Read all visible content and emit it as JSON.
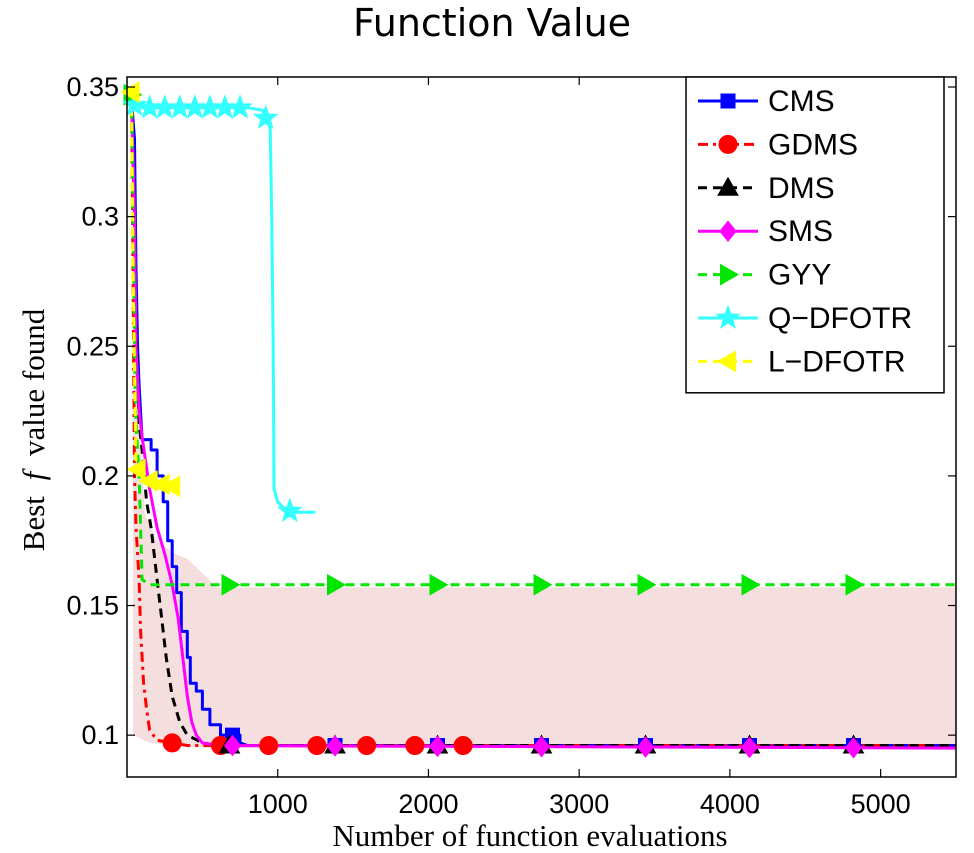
{
  "chart_data": {
    "type": "line",
    "title": "Function Value",
    "xlabel": "Number of function evaluations",
    "ylabel": {
      "prefix": "Best",
      "italic": "f",
      "suffix": "value found"
    },
    "xlim": [
      0,
      5500
    ],
    "ylim": [
      0.08,
      0.35
    ],
    "xticks": [
      1000,
      2000,
      3000,
      4000,
      5000
    ],
    "xtick_labels": [
      "1000",
      "2000",
      "3000",
      "4000",
      "5000"
    ],
    "yticks": [
      0.1,
      0.15,
      0.2,
      0.25,
      0.3,
      0.35
    ],
    "ytick_labels": [
      "0.1",
      "0.15",
      "0.2",
      "0.25",
      "0.3",
      "0.35"
    ],
    "grid": false,
    "legend_position": "top-right",
    "shaded_band": {
      "color": "#f5dede",
      "points": [
        [
          40,
          0.345
        ],
        [
          80,
          0.22
        ],
        [
          120,
          0.185
        ],
        [
          200,
          0.175
        ],
        [
          320,
          0.17
        ],
        [
          400,
          0.168
        ],
        [
          600,
          0.157
        ],
        [
          5500,
          0.157
        ],
        [
          5500,
          0.095
        ],
        [
          600,
          0.095
        ],
        [
          300,
          0.096
        ],
        [
          150,
          0.097
        ],
        [
          40,
          0.1
        ]
      ]
    },
    "series": [
      {
        "name": "CMS",
        "color": "#0000ff",
        "dash": "solid",
        "marker": "square",
        "points": [
          [
            30,
            0.345
          ],
          [
            50,
            0.33
          ],
          [
            60,
            0.28
          ],
          [
            70,
            0.25
          ],
          [
            80,
            0.235
          ],
          [
            100,
            0.214
          ],
          [
            160,
            0.214
          ],
          [
            160,
            0.21
          ],
          [
            200,
            0.21
          ],
          [
            200,
            0.2
          ],
          [
            240,
            0.2
          ],
          [
            240,
            0.19
          ],
          [
            270,
            0.19
          ],
          [
            270,
            0.175
          ],
          [
            300,
            0.175
          ],
          [
            300,
            0.165
          ],
          [
            330,
            0.165
          ],
          [
            330,
            0.155
          ],
          [
            360,
            0.155
          ],
          [
            360,
            0.14
          ],
          [
            400,
            0.14
          ],
          [
            400,
            0.13
          ],
          [
            420,
            0.13
          ],
          [
            420,
            0.12
          ],
          [
            460,
            0.12
          ],
          [
            460,
            0.117
          ],
          [
            500,
            0.117
          ],
          [
            500,
            0.11
          ],
          [
            550,
            0.11
          ],
          [
            550,
            0.104
          ],
          [
            620,
            0.104
          ],
          [
            620,
            0.1
          ],
          [
            750,
            0.1
          ],
          [
            750,
            0.097
          ],
          [
            800,
            0.096
          ],
          [
            5500,
            0.096
          ]
        ],
        "marker_x": [
          700,
          1380,
          2060,
          2750,
          3440,
          4130,
          4820
        ]
      },
      {
        "name": "GDMS",
        "color": "#ff0000",
        "dash": "dashdot",
        "marker": "circle",
        "points": [
          [
            30,
            0.345
          ],
          [
            40,
            0.28
          ],
          [
            50,
            0.2
          ],
          [
            60,
            0.18
          ],
          [
            70,
            0.17
          ],
          [
            80,
            0.16
          ],
          [
            90,
            0.14
          ],
          [
            100,
            0.13
          ],
          [
            110,
            0.12
          ],
          [
            130,
            0.11
          ],
          [
            150,
            0.102
          ],
          [
            200,
            0.098
          ],
          [
            300,
            0.097
          ],
          [
            400,
            0.096
          ],
          [
            5500,
            0.096
          ]
        ],
        "marker_x": [
          300,
          620,
          940,
          1260,
          1590,
          1910,
          2230
        ]
      },
      {
        "name": "DMS",
        "color": "#000000",
        "dash": "dashed",
        "marker": "triangle-up",
        "points": [
          [
            30,
            0.345
          ],
          [
            50,
            0.3
          ],
          [
            60,
            0.26
          ],
          [
            70,
            0.24
          ],
          [
            80,
            0.22
          ],
          [
            100,
            0.21
          ],
          [
            130,
            0.19
          ],
          [
            160,
            0.18
          ],
          [
            180,
            0.17
          ],
          [
            200,
            0.16
          ],
          [
            230,
            0.145
          ],
          [
            260,
            0.13
          ],
          [
            300,
            0.115
          ],
          [
            350,
            0.105
          ],
          [
            400,
            0.1
          ],
          [
            500,
            0.097
          ],
          [
            600,
            0.096
          ],
          [
            5500,
            0.096
          ]
        ],
        "marker_x": [
          680,
          1380,
          2060,
          2750,
          3440,
          4130,
          4820
        ]
      },
      {
        "name": "SMS",
        "color": "#ff00ff",
        "dash": "solid",
        "marker": "diamond",
        "points": [
          [
            30,
            0.345
          ],
          [
            50,
            0.3
          ],
          [
            60,
            0.25
          ],
          [
            80,
            0.225
          ],
          [
            100,
            0.215
          ],
          [
            150,
            0.195
          ],
          [
            200,
            0.18
          ],
          [
            250,
            0.17
          ],
          [
            300,
            0.158
          ],
          [
            340,
            0.145
          ],
          [
            370,
            0.13
          ],
          [
            400,
            0.115
          ],
          [
            430,
            0.105
          ],
          [
            460,
            0.1
          ],
          [
            500,
            0.097
          ],
          [
            600,
            0.096
          ],
          [
            5500,
            0.095
          ]
        ],
        "marker_x": [
          700,
          1380,
          2060,
          2750,
          3440,
          4130,
          4820
        ]
      },
      {
        "name": "GYY",
        "color": "#00e600",
        "dash": "dashed",
        "marker": "triangle-right",
        "points": [
          [
            30,
            0.347
          ],
          [
            40,
            0.3
          ],
          [
            50,
            0.25
          ],
          [
            60,
            0.22
          ],
          [
            80,
            0.2
          ],
          [
            100,
            0.16
          ],
          [
            150,
            0.158
          ],
          [
            5500,
            0.158
          ]
        ],
        "marker_x": [
          30,
          680,
          1380,
          2060,
          2750,
          3440,
          4130,
          4820
        ]
      },
      {
        "name": "Q−DFOTR",
        "color": "#33ffff",
        "dash": "solid",
        "marker": "star",
        "points": [
          [
            30,
            0.347
          ],
          [
            50,
            0.343
          ],
          [
            100,
            0.342
          ],
          [
            800,
            0.342
          ],
          [
            900,
            0.341
          ],
          [
            920,
            0.338
          ],
          [
            950,
            0.334
          ],
          [
            960,
            0.3
          ],
          [
            970,
            0.25
          ],
          [
            975,
            0.195
          ],
          [
            1000,
            0.19
          ],
          [
            1050,
            0.187
          ],
          [
            1100,
            0.186
          ],
          [
            1250,
            0.186
          ]
        ],
        "marker_x": [
          50,
          150,
          250,
          350,
          450,
          550,
          650,
          750,
          920,
          1080
        ]
      },
      {
        "name": "L−DFOTR",
        "color": "#ffff00",
        "dash": "dashed",
        "marker": "triangle-left",
        "points": [
          [
            30,
            0.348
          ],
          [
            40,
            0.28
          ],
          [
            50,
            0.24
          ],
          [
            60,
            0.205
          ],
          [
            80,
            0.2
          ],
          [
            150,
            0.198
          ],
          [
            200,
            0.197
          ],
          [
            300,
            0.196
          ],
          [
            330,
            0.195
          ]
        ],
        "marker_x": [
          30,
          70,
          150,
          230,
          300
        ]
      }
    ]
  }
}
